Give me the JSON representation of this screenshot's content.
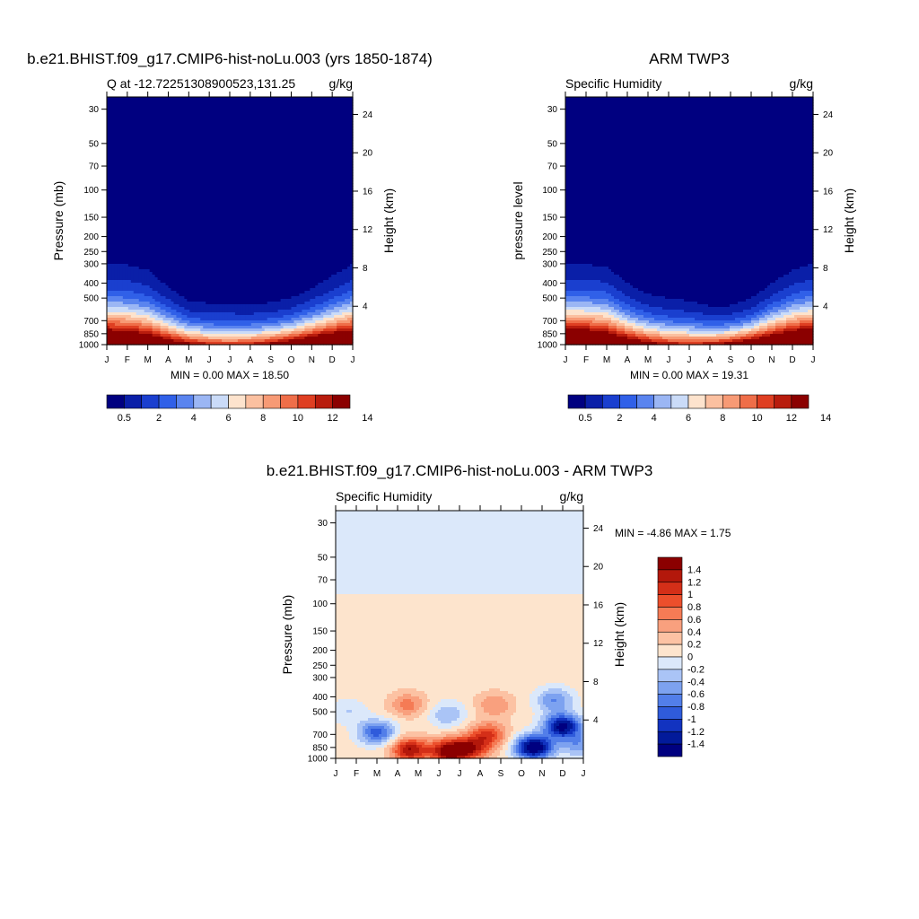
{
  "chart_data": [
    {
      "type": "heatmap",
      "title": "b.e21.BHIST.f09_g17.CMIP6-hist-noLu.003 (yrs 1850-1874)",
      "left_title": "Q at -12.72251308900523,131.25",
      "right_title": "g/kg",
      "ylabel": "Pressure (mb)",
      "ylabel_right": "Height (km)",
      "x": [
        "J",
        "F",
        "M",
        "A",
        "M",
        "J",
        "J",
        "A",
        "S",
        "O",
        "N",
        "D",
        "J"
      ],
      "y_ticks": [
        "30",
        "50",
        "70",
        "100",
        "150",
        "200",
        "250",
        "300",
        "400",
        "500",
        "700",
        "850",
        "1000"
      ],
      "y_ticks_right": [
        "24",
        "20",
        "16",
        "12",
        "8",
        "4"
      ],
      "ylim": [
        1000,
        25
      ],
      "min_max": "MIN =   0.00 MAX =  18.50",
      "colorbar": {
        "labels": [
          "0.5",
          "2",
          "4",
          "6",
          "8",
          "10",
          "12",
          "14"
        ],
        "colors": [
          "#000080",
          "#0a1fa8",
          "#1a3fcf",
          "#3060e8",
          "#5a84ef",
          "#9bb6f4",
          "#cadbf8",
          "#fde3cd",
          "#fbc0a0",
          "#f79a75",
          "#ef6e49",
          "#df3f22",
          "#b81c0d",
          "#8b0000"
        ]
      },
      "moisture_top_pressure": [
        300,
        305,
        330,
        420,
        520,
        540,
        540,
        545,
        535,
        500,
        430,
        360,
        300
      ],
      "surface_max": 18.5
    },
    {
      "type": "heatmap",
      "title": "ARM TWP3",
      "left_title": "Specific Humidity",
      "right_title": "g/kg",
      "ylabel": "pressure level",
      "ylabel_right": "Height (km)",
      "x": [
        "J",
        "F",
        "M",
        "A",
        "M",
        "J",
        "J",
        "A",
        "S",
        "O",
        "N",
        "D",
        "J"
      ],
      "y_ticks": [
        "30",
        "50",
        "70",
        "100",
        "150",
        "200",
        "250",
        "300",
        "400",
        "500",
        "700",
        "850",
        "1000"
      ],
      "y_ticks_right": [
        "24",
        "20",
        "16",
        "12",
        "8",
        "4"
      ],
      "ylim": [
        1000,
        25
      ],
      "min_max": "MIN =   0.00 MAX =  19.31",
      "colorbar": {
        "labels": [
          "0.5",
          "2",
          "4",
          "6",
          "8",
          "10",
          "12",
          "14"
        ],
        "colors": [
          "#000080",
          "#0a1fa8",
          "#1a3fcf",
          "#3060e8",
          "#5a84ef",
          "#9bb6f4",
          "#cadbf8",
          "#fde3cd",
          "#fbc0a0",
          "#f79a75",
          "#ef6e49",
          "#df3f22",
          "#b81c0d",
          "#8b0000"
        ]
      },
      "moisture_top_pressure": [
        300,
        305,
        310,
        400,
        470,
        500,
        520,
        560,
        560,
        500,
        400,
        330,
        300
      ],
      "surface_max": 19.31
    },
    {
      "type": "heatmap",
      "title": "b.e21.BHIST.f09_g17.CMIP6-hist-noLu.003 - ARM TWP3",
      "left_title": "Specific Humidity",
      "right_title": "g/kg",
      "ylabel": "Pressure (mb)",
      "ylabel_right": "Height (km)",
      "x": [
        "J",
        "F",
        "M",
        "A",
        "M",
        "J",
        "J",
        "A",
        "S",
        "O",
        "N",
        "D",
        "J"
      ],
      "y_ticks": [
        "30",
        "50",
        "70",
        "100",
        "150",
        "200",
        "250",
        "300",
        "400",
        "500",
        "700",
        "850",
        "1000"
      ],
      "y_ticks_right": [
        "24",
        "20",
        "16",
        "12",
        "8",
        "4"
      ],
      "ylim": [
        1000,
        25
      ],
      "min_max": "MIN =  -4.86 MAX =   1.75",
      "colorbar": {
        "labels": [
          "1.4",
          "1.2",
          "1",
          "0.8",
          "0.6",
          "0.4",
          "0.2",
          "0",
          "-0.2",
          "-0.4",
          "-0.6",
          "-0.8",
          "-1",
          "-1.2",
          "-1.4"
        ],
        "colors": [
          "#8b0000",
          "#b3180b",
          "#d42f18",
          "#ec4f2c",
          "#f57b55",
          "#f9a07e",
          "#fcc2a3",
          "#fde4cd",
          "#dbe8fa",
          "#aac4f6",
          "#7da2f0",
          "#527ee9",
          "#2f5bdb",
          "#1233c0",
          "#021a9a",
          "#000080"
        ]
      },
      "anomaly_features": [
        {
          "x": 3.6,
          "p": 880,
          "v": 1.3
        },
        {
          "x": 5.5,
          "p": 900,
          "v": 1.5
        },
        {
          "x": 6.6,
          "p": 860,
          "v": 1.0
        },
        {
          "x": 7.4,
          "p": 700,
          "v": 0.9
        },
        {
          "x": 3.5,
          "p": 450,
          "v": 0.6
        },
        {
          "x": 7.7,
          "p": 450,
          "v": 0.5
        },
        {
          "x": 5.4,
          "p": 520,
          "v": -0.5
        },
        {
          "x": 9.6,
          "p": 850,
          "v": -1.8
        },
        {
          "x": 11.0,
          "p": 620,
          "v": -1.6
        },
        {
          "x": 10.6,
          "p": 420,
          "v": -0.7
        },
        {
          "x": 2.0,
          "p": 680,
          "v": -1.0
        },
        {
          "x": 0.6,
          "p": 500,
          "v": -0.3
        },
        {
          "x": 11.8,
          "p": 820,
          "v": -0.6
        }
      ],
      "anomaly_aloft_boundary_pressure": 85
    }
  ]
}
